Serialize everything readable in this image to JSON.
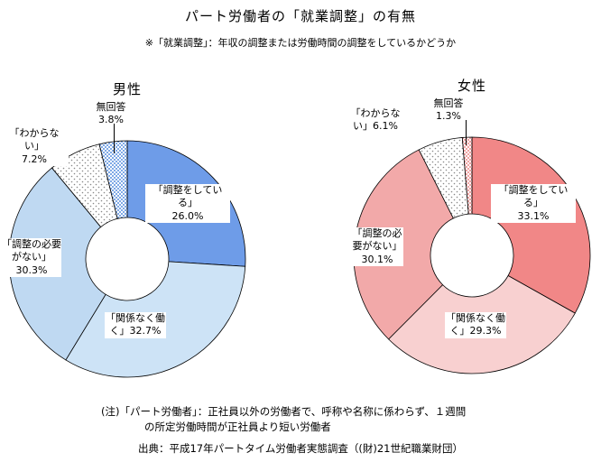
{
  "title": "パート労働者の「就業調整」の有無",
  "subtitle": "※「就業調整」：年収の調整または労働時間の調整をしているかどうか",
  "notes": {
    "line1": "(注)「パート労働者」：正社員以外の労働者で、呼称や名称に係わらず、１週間",
    "line2": "の所定労働時間が正社員より短い労働者",
    "source": "出典：平成17年パートタイム労働者実態調査（(財)21世紀職業財団）"
  },
  "pattern_colors": {
    "dots": "#888888",
    "checker_blue": "#7FA9E6",
    "checker_pink": "#F1A3A3"
  },
  "chart_data": [
    {
      "type": "donut",
      "title": "男性",
      "start_angle": "top",
      "direction": "clockwise",
      "categories": [
        "調整をしている",
        "関係なく働く",
        "調整の必要がない",
        "わからない",
        "無回答"
      ],
      "values": [
        26.0,
        32.7,
        30.3,
        7.2,
        3.8
      ],
      "segments": [
        {
          "label": "調整をしている",
          "value": 26.0,
          "pct": "26.0%",
          "display": "「調整をしている」\n26.0%",
          "fill": "#6E9CE8"
        },
        {
          "label": "関係なく働く",
          "value": 32.7,
          "pct": "32.7%",
          "display": "「関係なく働\nく」32.7%",
          "fill": "#CDE3F6"
        },
        {
          "label": "調整の必要がない",
          "value": 30.3,
          "pct": "30.3%",
          "display": "「調整の必要\nがない」\n30.3%",
          "fill": "#BFD9F2"
        },
        {
          "label": "わからない",
          "value": 7.2,
          "pct": "7.2%",
          "display": "「わからない」\n7.2%",
          "fill": "pat-dots"
        },
        {
          "label": "無回答",
          "value": 3.8,
          "pct": "3.8%",
          "display": "無回答\n3.8%",
          "fill": "pat-check-blue"
        }
      ]
    },
    {
      "type": "donut",
      "title": "女性",
      "start_angle": "top",
      "direction": "clockwise",
      "categories": [
        "調整をしている",
        "関係なく働く",
        "調整の必要がない",
        "わからない",
        "無回答"
      ],
      "values": [
        33.1,
        29.3,
        30.1,
        6.1,
        1.3
      ],
      "segments": [
        {
          "label": "調整をしている",
          "value": 33.1,
          "pct": "33.1%",
          "display": "「調整をしている」\n33.1%",
          "fill": "#F18787"
        },
        {
          "label": "関係なく働く",
          "value": 29.3,
          "pct": "29.3%",
          "display": "「関係なく働\nく」29.3%",
          "fill": "#F8D0D0"
        },
        {
          "label": "調整の必要がない",
          "value": 30.1,
          "pct": "30.1%",
          "display": "「調整の必\n要がない」\n30.1%",
          "fill": "#F2A9A9"
        },
        {
          "label": "わからない",
          "value": 6.1,
          "pct": "6.1%",
          "display": "「わからな\nい」6.1%",
          "fill": "pat-dots"
        },
        {
          "label": "無回答",
          "value": 1.3,
          "pct": "1.3%",
          "display": "無回答\n1.3%",
          "fill": "pat-check-pink"
        }
      ]
    }
  ]
}
